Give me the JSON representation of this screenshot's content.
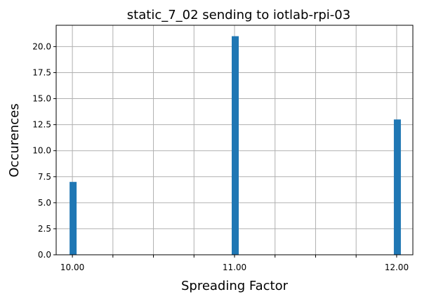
{
  "chart_data": {
    "type": "bar",
    "title": "static_7_02 sending to iotlab-rpi-03",
    "xlabel": "Spreading Factor",
    "ylabel": "Occurences",
    "x": [
      10.0,
      11.0,
      12.0
    ],
    "values": [
      7,
      21,
      13
    ],
    "xlim": [
      9.9,
      12.1
    ],
    "ylim": [
      0,
      22.05
    ],
    "x_ticks": [
      10.0,
      10.25,
      10.5,
      10.75,
      11.0,
      11.25,
      11.5,
      11.75,
      12.0
    ],
    "x_tick_labels": [
      "10.00",
      "",
      "",
      "",
      "11.00",
      "",
      "",
      "",
      "12.00"
    ],
    "y_ticks": [
      0,
      2.5,
      5,
      7.5,
      10,
      12.5,
      15,
      17.5,
      20
    ],
    "y_tick_labels": [
      "0.0",
      "2.5",
      "5.0",
      "7.5",
      "10.0",
      "12.5",
      "15.0",
      "17.5",
      "20.0"
    ],
    "grid": true,
    "bar_color": "#1f77b4"
  }
}
